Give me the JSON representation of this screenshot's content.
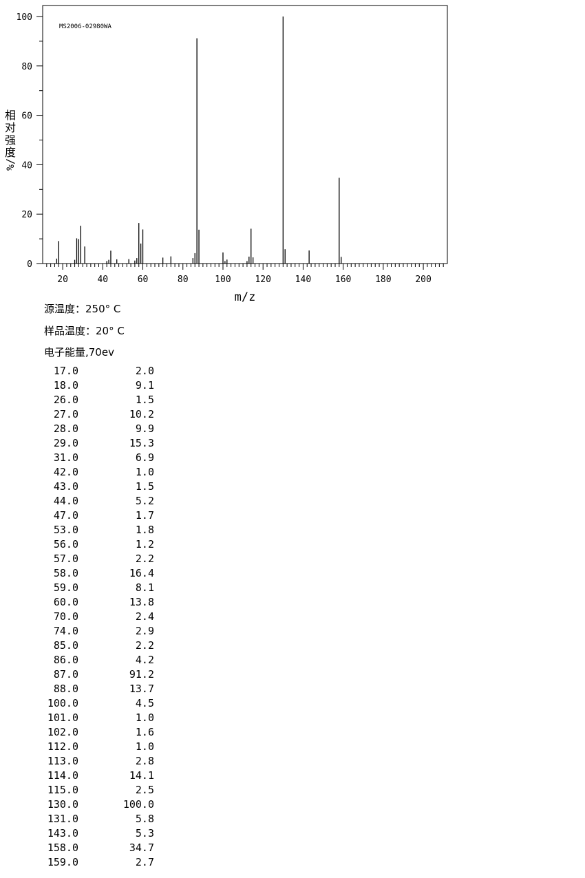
{
  "chart_data": {
    "type": "bar",
    "annotation": "MS2006-02980WA",
    "xlabel": "m/z",
    "ylabel_chars": [
      "相",
      "对",
      "强",
      "度"
    ],
    "ylabel_unit": "%/",
    "xlim": [
      10,
      212
    ],
    "ylim": [
      0,
      100
    ],
    "x_ticks": [
      20,
      40,
      60,
      80,
      100,
      120,
      140,
      160,
      180,
      200
    ],
    "y_ticks": [
      0,
      20,
      40,
      60,
      80,
      100
    ],
    "grid": false,
    "peaks": [
      {
        "mz": 17.0,
        "ab": 2.0
      },
      {
        "mz": 18.0,
        "ab": 9.1
      },
      {
        "mz": 26.0,
        "ab": 1.5
      },
      {
        "mz": 27.0,
        "ab": 10.2
      },
      {
        "mz": 28.0,
        "ab": 9.9
      },
      {
        "mz": 29.0,
        "ab": 15.3
      },
      {
        "mz": 31.0,
        "ab": 6.9
      },
      {
        "mz": 42.0,
        "ab": 1.0
      },
      {
        "mz": 43.0,
        "ab": 1.5
      },
      {
        "mz": 44.0,
        "ab": 5.2
      },
      {
        "mz": 47.0,
        "ab": 1.7
      },
      {
        "mz": 53.0,
        "ab": 1.8
      },
      {
        "mz": 56.0,
        "ab": 1.2
      },
      {
        "mz": 57.0,
        "ab": 2.2
      },
      {
        "mz": 58.0,
        "ab": 16.4
      },
      {
        "mz": 59.0,
        "ab": 8.1
      },
      {
        "mz": 60.0,
        "ab": 13.8
      },
      {
        "mz": 70.0,
        "ab": 2.4
      },
      {
        "mz": 74.0,
        "ab": 2.9
      },
      {
        "mz": 85.0,
        "ab": 2.2
      },
      {
        "mz": 86.0,
        "ab": 4.2
      },
      {
        "mz": 87.0,
        "ab": 91.2
      },
      {
        "mz": 88.0,
        "ab": 13.7
      },
      {
        "mz": 100.0,
        "ab": 4.5
      },
      {
        "mz": 101.0,
        "ab": 1.0
      },
      {
        "mz": 102.0,
        "ab": 1.6
      },
      {
        "mz": 112.0,
        "ab": 1.0
      },
      {
        "mz": 113.0,
        "ab": 2.8
      },
      {
        "mz": 114.0,
        "ab": 14.1
      },
      {
        "mz": 115.0,
        "ab": 2.5
      },
      {
        "mz": 130.0,
        "ab": 100.0
      },
      {
        "mz": 131.0,
        "ab": 5.8
      },
      {
        "mz": 143.0,
        "ab": 5.3
      },
      {
        "mz": 158.0,
        "ab": 34.7
      },
      {
        "mz": 159.0,
        "ab": 2.7
      }
    ]
  },
  "conditions": {
    "source_temp": "源温度：250° C",
    "sample_temp": "样品温度：20° C",
    "electron_energy": "电子能量,70ev"
  },
  "table": [
    [
      "17.0",
      "2.0"
    ],
    [
      "18.0",
      "9.1"
    ],
    [
      "26.0",
      "1.5"
    ],
    [
      "27.0",
      "10.2"
    ],
    [
      "28.0",
      "9.9"
    ],
    [
      "29.0",
      "15.3"
    ],
    [
      "31.0",
      "6.9"
    ],
    [
      "42.0",
      "1.0"
    ],
    [
      "43.0",
      "1.5"
    ],
    [
      "44.0",
      "5.2"
    ],
    [
      "47.0",
      "1.7"
    ],
    [
      "53.0",
      "1.8"
    ],
    [
      "56.0",
      "1.2"
    ],
    [
      "57.0",
      "2.2"
    ],
    [
      "58.0",
      "16.4"
    ],
    [
      "59.0",
      "8.1"
    ],
    [
      "60.0",
      "13.8"
    ],
    [
      "70.0",
      "2.4"
    ],
    [
      "74.0",
      "2.9"
    ],
    [
      "85.0",
      "2.2"
    ],
    [
      "86.0",
      "4.2"
    ],
    [
      "87.0",
      "91.2"
    ],
    [
      "88.0",
      "13.7"
    ],
    [
      "100.0",
      "4.5"
    ],
    [
      "101.0",
      "1.0"
    ],
    [
      "102.0",
      "1.6"
    ],
    [
      "112.0",
      "1.0"
    ],
    [
      "113.0",
      "2.8"
    ],
    [
      "114.0",
      "14.1"
    ],
    [
      "115.0",
      "2.5"
    ],
    [
      "130.0",
      "100.0"
    ],
    [
      "131.0",
      "5.8"
    ],
    [
      "143.0",
      "5.3"
    ],
    [
      "158.0",
      "34.7"
    ],
    [
      "159.0",
      "2.7"
    ]
  ]
}
